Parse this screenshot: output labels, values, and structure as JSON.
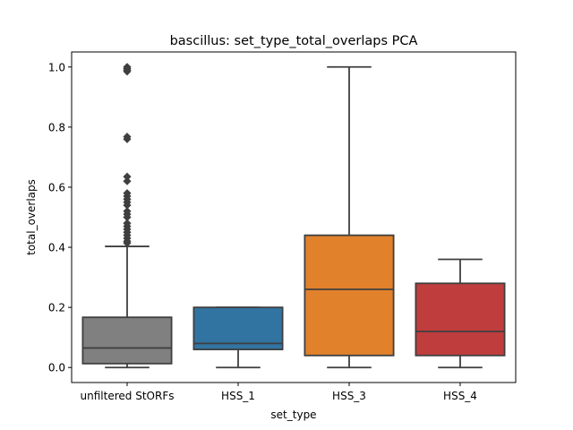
{
  "chart_data": {
    "type": "box",
    "title": "bascillus: set_type_total_overlaps PCA",
    "xlabel": "set_type",
    "ylabel": "total_overlaps",
    "ylim": [
      -0.05,
      1.05
    ],
    "yticks": [
      0.0,
      0.2,
      0.4,
      0.6,
      0.8,
      1.0
    ],
    "ytick_labels": [
      "0.0",
      "0.2",
      "0.4",
      "0.6",
      "0.8",
      "1.0"
    ],
    "grid": false,
    "categories": [
      "unfiltered StORFs",
      "HSS_1",
      "HSS_3",
      "HSS_4"
    ],
    "boxes": [
      {
        "category": "unfiltered StORFs",
        "color": "#808080",
        "whisker_low": 0.0,
        "q1": 0.013,
        "median": 0.065,
        "q3": 0.167,
        "whisker_high": 0.403,
        "outliers": [
          0.414,
          0.42,
          0.43,
          0.44,
          0.45,
          0.46,
          0.47,
          0.48,
          0.5,
          0.51,
          0.52,
          0.54,
          0.55,
          0.56,
          0.57,
          0.58,
          0.62,
          0.635,
          0.76,
          0.768,
          0.985,
          0.99,
          0.995,
          1.0
        ]
      },
      {
        "category": "HSS_1",
        "color": "#3274a1",
        "whisker_low": 0.0,
        "q1": 0.06,
        "median": 0.08,
        "q3": 0.2,
        "whisker_high": 0.2,
        "outliers": []
      },
      {
        "category": "HSS_3",
        "color": "#e1812c",
        "whisker_low": 0.0,
        "q1": 0.04,
        "median": 0.26,
        "q3": 0.44,
        "whisker_high": 1.0,
        "outliers": []
      },
      {
        "category": "HSS_4",
        "color": "#c03d3e",
        "whisker_low": 0.0,
        "q1": 0.04,
        "median": 0.12,
        "q3": 0.28,
        "whisker_high": 0.36,
        "outliers": []
      }
    ]
  }
}
